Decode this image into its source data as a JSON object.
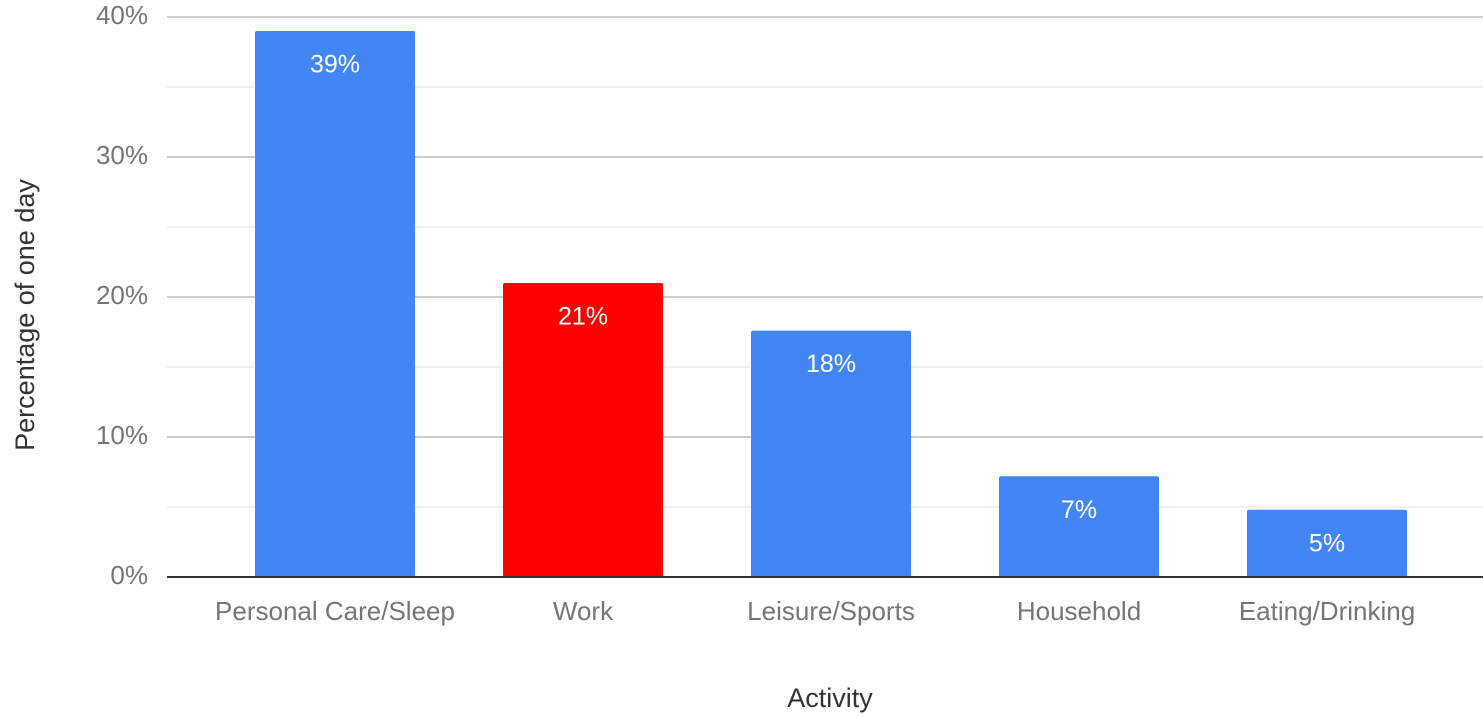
{
  "chart_data": {
    "type": "bar",
    "xlabel": "Activity",
    "ylabel": "Percentage of one day",
    "categories": [
      "Personal Care/Sleep",
      "Work",
      "Leisure/Sports",
      "Household",
      "Eating/Drinking"
    ],
    "values": [
      39,
      21,
      17.6,
      7.2,
      4.8
    ],
    "value_labels": [
      "39%",
      "21%",
      "18%",
      "7%",
      "5%"
    ],
    "colors": [
      "#4285f4",
      "#ff0000",
      "#4285f4",
      "#4285f4",
      "#4285f4"
    ],
    "ylim": [
      0,
      40
    ],
    "yticks": [
      {
        "value": 0,
        "label": "0%"
      },
      {
        "value": 10,
        "label": "10%"
      },
      {
        "value": 20,
        "label": "20%"
      },
      {
        "value": 30,
        "label": "30%"
      },
      {
        "value": 40,
        "label": "40%"
      }
    ],
    "minor_yticks": [
      5,
      15,
      25,
      35
    ],
    "grid": true
  }
}
